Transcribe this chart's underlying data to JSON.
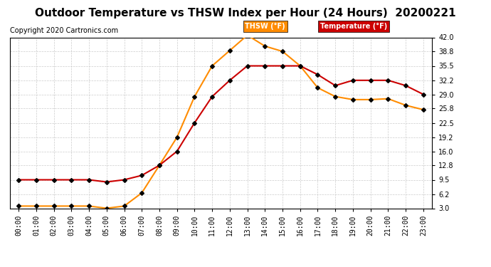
{
  "title": "Outdoor Temperature vs THSW Index per Hour (24 Hours)  20200221",
  "copyright": "Copyright 2020 Cartronics.com",
  "hours": [
    "00:00",
    "01:00",
    "02:00",
    "03:00",
    "04:00",
    "05:00",
    "06:00",
    "07:00",
    "08:00",
    "09:00",
    "10:00",
    "11:00",
    "12:00",
    "13:00",
    "14:00",
    "15:00",
    "16:00",
    "17:00",
    "18:00",
    "19:00",
    "20:00",
    "21:00",
    "22:00",
    "23:00"
  ],
  "temperature": [
    9.5,
    9.5,
    9.5,
    9.5,
    9.5,
    9.0,
    9.5,
    10.5,
    12.8,
    16.0,
    22.5,
    28.5,
    32.2,
    35.5,
    35.5,
    35.5,
    35.5,
    33.5,
    31.0,
    32.2,
    32.2,
    32.2,
    31.0,
    29.0
  ],
  "thsw": [
    3.5,
    3.5,
    3.5,
    3.5,
    3.5,
    3.0,
    3.5,
    6.5,
    12.8,
    19.2,
    28.5,
    35.5,
    39.0,
    42.5,
    40.0,
    38.8,
    35.5,
    30.5,
    28.5,
    27.8,
    27.8,
    28.0,
    26.5,
    25.5
  ],
  "temp_color": "#cc0000",
  "thsw_color": "#ff8c00",
  "marker_color": "black",
  "bg_color": "#ffffff",
  "grid_color": "#cccccc",
  "ylim_min": 3.0,
  "ylim_max": 42.0,
  "yticks": [
    3.0,
    6.2,
    9.5,
    12.8,
    16.0,
    19.2,
    22.5,
    25.8,
    29.0,
    32.2,
    35.5,
    38.8,
    42.0
  ],
  "legend_thsw_text": "THSW (°F)",
  "legend_temp_text": "Temperature (°F)",
  "legend_thsw_bg": "#ff8c00",
  "legend_temp_bg": "#cc0000",
  "title_fontsize": 11,
  "copyright_fontsize": 7,
  "tick_fontsize": 7,
  "marker": "D",
  "marker_size": 3,
  "linewidth": 1.5
}
